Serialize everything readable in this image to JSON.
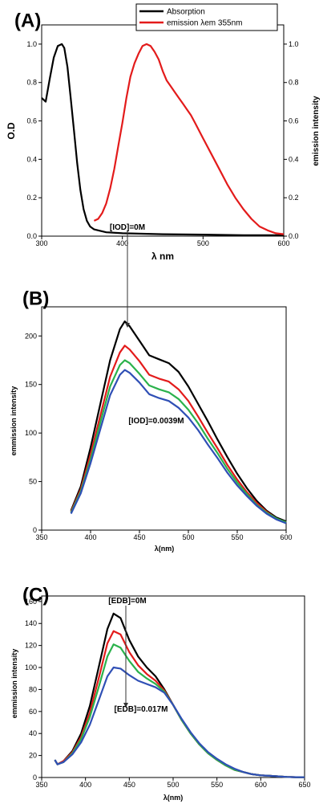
{
  "chart_data": [
    {
      "panel": "(A)",
      "type": "line",
      "xlabel": "λ nm",
      "ylabel": "O.D",
      "y2label": "emission intensity",
      "xlim": [
        300,
        600
      ],
      "ylim": [
        0,
        1.1
      ],
      "y2lim": [
        0,
        1.1
      ],
      "xticks": [
        300,
        400,
        500,
        600
      ],
      "yticks": [
        "0.0",
        "0.2",
        "0.4",
        "0.6",
        "0.8",
        "1.0"
      ],
      "legend": {
        "placement": "top-right"
      },
      "series": [
        {
          "name": "Absorption",
          "color": "#000000",
          "x": [
            300,
            305,
            310,
            315,
            320,
            325,
            328,
            332,
            336,
            340,
            344,
            348,
            352,
            356,
            360,
            365,
            370,
            380,
            400,
            450,
            500,
            550,
            600
          ],
          "y": [
            0.72,
            0.7,
            0.82,
            0.93,
            0.99,
            1.0,
            0.98,
            0.88,
            0.72,
            0.55,
            0.38,
            0.24,
            0.14,
            0.08,
            0.05,
            0.035,
            0.03,
            0.02,
            0.015,
            0.01,
            0.008,
            0.005,
            0.005
          ]
        },
        {
          "name": "emission λem 355nm",
          "color": "#e31b1b",
          "x": [
            365,
            370,
            375,
            380,
            385,
            390,
            395,
            400,
            405,
            410,
            415,
            420,
            425,
            430,
            435,
            440,
            445,
            450,
            455,
            460,
            465,
            470,
            475,
            480,
            485,
            490,
            500,
            510,
            520,
            530,
            540,
            550,
            560,
            570,
            580,
            590,
            600
          ],
          "y": [
            0.08,
            0.09,
            0.12,
            0.17,
            0.25,
            0.35,
            0.47,
            0.59,
            0.72,
            0.83,
            0.9,
            0.95,
            0.99,
            1.0,
            0.99,
            0.96,
            0.92,
            0.86,
            0.81,
            0.78,
            0.75,
            0.72,
            0.69,
            0.66,
            0.63,
            0.59,
            0.51,
            0.43,
            0.35,
            0.27,
            0.2,
            0.14,
            0.09,
            0.05,
            0.03,
            0.015,
            0.01
          ]
        }
      ]
    },
    {
      "panel": "(B)",
      "type": "line",
      "xlabel": "λ(nm)",
      "ylabel": "emmission intensity",
      "xlim": [
        350,
        600
      ],
      "ylim": [
        0,
        230
      ],
      "xticks": [
        350,
        400,
        450,
        500,
        550,
        600
      ],
      "yticks": [
        0,
        50,
        100,
        150,
        200
      ],
      "annotations": [
        "[IOD]=0M",
        "[IOD]=0.0039M"
      ],
      "series": [
        {
          "color": "#000000",
          "x": [
            380,
            390,
            400,
            410,
            420,
            430,
            435,
            440,
            450,
            460,
            470,
            480,
            490,
            500,
            510,
            520,
            530,
            540,
            550,
            560,
            570,
            580,
            590,
            600
          ],
          "y": [
            20,
            45,
            85,
            130,
            175,
            207,
            215,
            210,
            195,
            180,
            176,
            172,
            163,
            148,
            130,
            112,
            93,
            75,
            58,
            43,
            30,
            20,
            13,
            9
          ]
        },
        {
          "color": "#e31b1b",
          "x": [
            380,
            390,
            400,
            410,
            420,
            430,
            435,
            440,
            450,
            460,
            470,
            480,
            490,
            500,
            510,
            520,
            530,
            540,
            550,
            560,
            570,
            580,
            590,
            600
          ],
          "y": [
            19,
            42,
            78,
            118,
            158,
            183,
            190,
            186,
            174,
            160,
            156,
            153,
            145,
            133,
            117,
            100,
            84,
            67,
            52,
            39,
            28,
            19,
            12,
            8
          ]
        },
        {
          "color": "#2bb24c",
          "x": [
            380,
            390,
            400,
            410,
            420,
            430,
            435,
            440,
            450,
            460,
            470,
            480,
            490,
            500,
            510,
            520,
            530,
            540,
            550,
            560,
            570,
            580,
            590,
            600
          ],
          "y": [
            18,
            40,
            73,
            111,
            148,
            170,
            175,
            172,
            161,
            149,
            145,
            142,
            135,
            124,
            110,
            94,
            79,
            63,
            49,
            37,
            26,
            18,
            12,
            8
          ]
        },
        {
          "color": "#2f4fb5",
          "x": [
            380,
            390,
            400,
            410,
            420,
            430,
            435,
            440,
            450,
            460,
            470,
            480,
            490,
            500,
            510,
            520,
            530,
            540,
            550,
            560,
            570,
            580,
            590,
            600
          ],
          "y": [
            17,
            38,
            69,
            104,
            139,
            160,
            165,
            162,
            152,
            140,
            136,
            133,
            126,
            116,
            103,
            88,
            74,
            59,
            46,
            35,
            25,
            17,
            11,
            7
          ]
        }
      ]
    },
    {
      "panel": "(C)",
      "type": "line",
      "xlabel": "λ(nm)",
      "ylabel": "emmission intensity",
      "xlim": [
        350,
        650
      ],
      "ylim": [
        0,
        165
      ],
      "xticks": [
        350,
        400,
        450,
        500,
        550,
        600,
        650
      ],
      "yticks": [
        0,
        20,
        40,
        60,
        80,
        100,
        120,
        140,
        160
      ],
      "annotations": [
        "[EDB]=0M",
        "[EDB]=0.017M"
      ],
      "series": [
        {
          "color": "#000000",
          "x": [
            365,
            368,
            375,
            385,
            395,
            405,
            415,
            425,
            432,
            440,
            450,
            460,
            470,
            480,
            490,
            500,
            510,
            520,
            530,
            540,
            550,
            560,
            570,
            580,
            590,
            600,
            610,
            620,
            630,
            640,
            650
          ],
          "y": [
            16,
            12,
            15,
            24,
            40,
            65,
            100,
            135,
            149,
            145,
            125,
            110,
            100,
            92,
            80,
            66,
            52,
            40,
            30,
            22,
            16,
            11,
            7,
            5,
            3,
            2,
            1.5,
            1,
            0.5,
            0.3,
            0.2
          ]
        },
        {
          "color": "#e31b1b",
          "x": [
            365,
            368,
            375,
            385,
            395,
            405,
            415,
            425,
            432,
            440,
            450,
            460,
            470,
            480,
            490,
            500,
            510,
            520,
            530,
            540,
            550,
            560,
            570,
            580,
            590,
            600,
            610,
            620,
            630,
            640,
            650
          ],
          "y": [
            16,
            12,
            15,
            23,
            37,
            59,
            90,
            122,
            133,
            130,
            114,
            102,
            94,
            88,
            79,
            66,
            52,
            40,
            30,
            22,
            16,
            11,
            7,
            5,
            3,
            2,
            1.5,
            1,
            0.5,
            0.3,
            0.2
          ]
        },
        {
          "color": "#2bb24c",
          "x": [
            365,
            368,
            375,
            385,
            395,
            405,
            415,
            425,
            432,
            440,
            450,
            460,
            470,
            480,
            490,
            500,
            510,
            520,
            530,
            540,
            550,
            560,
            570,
            580,
            590,
            600,
            610,
            620,
            630,
            640,
            650
          ],
          "y": [
            16,
            12,
            14,
            22,
            35,
            55,
            82,
            110,
            121,
            118,
            106,
            96,
            90,
            85,
            78,
            66,
            52,
            40,
            30,
            22,
            16,
            11,
            7,
            5,
            3,
            2,
            1.5,
            1,
            0.5,
            0.3,
            0.2
          ]
        },
        {
          "color": "#2f4fb5",
          "x": [
            365,
            368,
            375,
            385,
            395,
            405,
            415,
            425,
            432,
            440,
            450,
            460,
            470,
            480,
            490,
            500,
            510,
            520,
            530,
            540,
            550,
            560,
            570,
            580,
            590,
            600,
            610,
            620,
            630,
            640,
            650
          ],
          "y": [
            16,
            12,
            14,
            21,
            32,
            48,
            70,
            92,
            100,
            99,
            93,
            88,
            85,
            82,
            77,
            66,
            53,
            41,
            31,
            23,
            17,
            12,
            8,
            5,
            3,
            2,
            1.5,
            1,
            0.5,
            0.3,
            0.2
          ]
        }
      ]
    }
  ]
}
